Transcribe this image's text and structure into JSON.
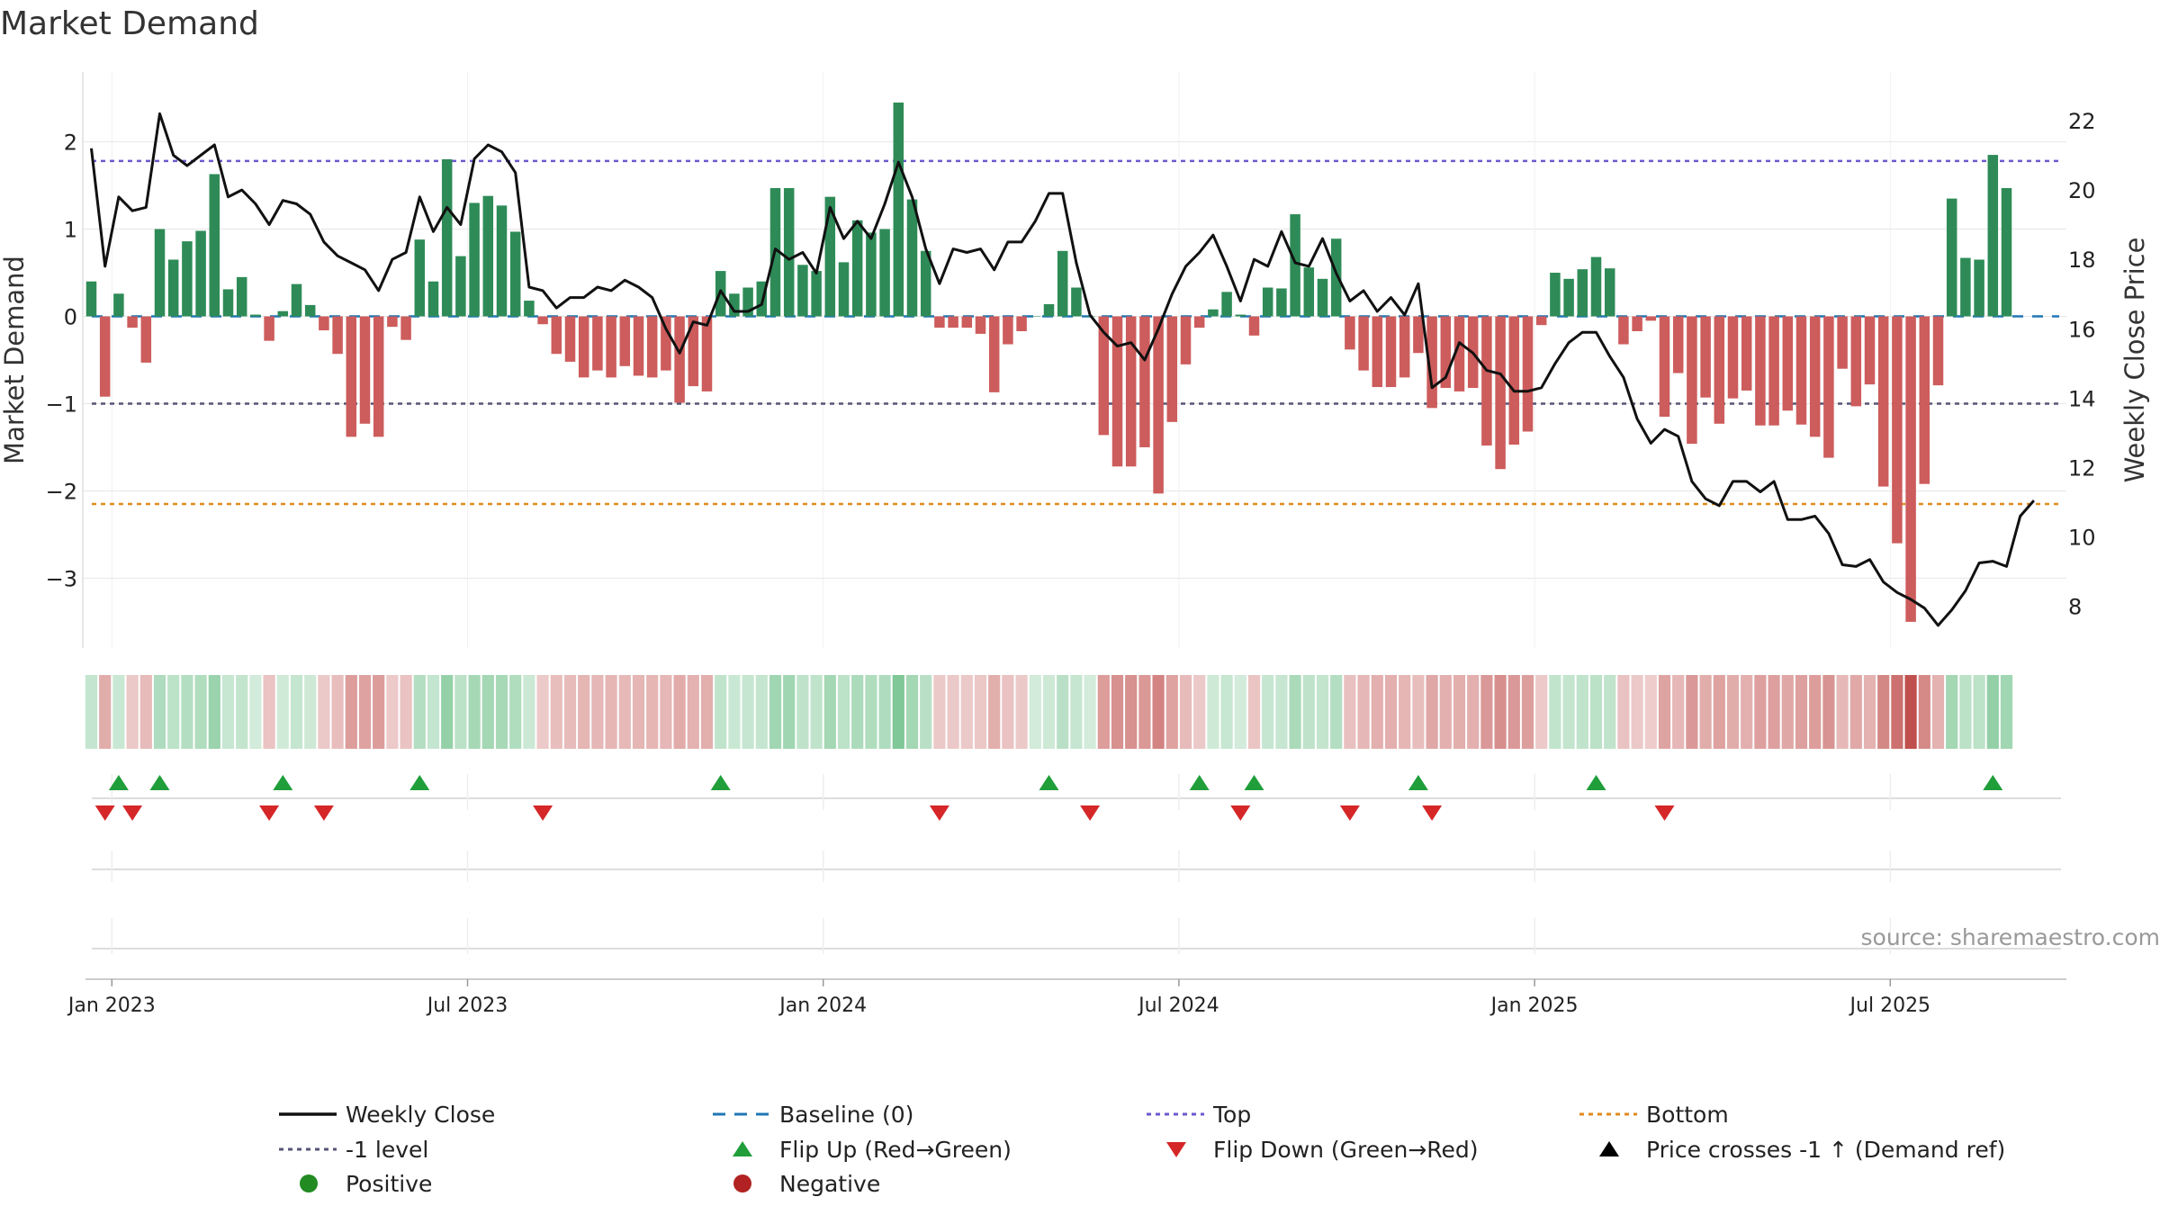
{
  "colors": {
    "positive_bar": "#2e8b57",
    "negative_bar": "#cd5c5c",
    "close_line": "#111111",
    "baseline": "#1f77b4",
    "top_line": "#6a5acd",
    "minus1_line": "#555577",
    "bottom_line": "#e08a1e",
    "flip_up": "#1f9e3a",
    "flip_down": "#d62728",
    "positive_dot": "#228b22",
    "negative_dot": "#b22222",
    "cross_marker": "#000000"
  },
  "chart_data": {
    "type": "bar",
    "title": "Market Demand",
    "ylabel_left": "Market Demand",
    "ylabel_right": "Weekly Close Price",
    "source": "source: sharemaestro.com",
    "ylim_left": [
      -3.8,
      2.8
    ],
    "ylim_right": [
      6.8,
      23.4
    ],
    "left_ticks": [
      {
        "value": 2,
        "label": "2"
      },
      {
        "value": 1,
        "label": "1"
      },
      {
        "value": 0,
        "label": "0"
      },
      {
        "value": -1,
        "label": "−1"
      },
      {
        "value": -2,
        "label": "−2"
      },
      {
        "value": -3,
        "label": "−3"
      }
    ],
    "right_ticks": [
      {
        "value": 22,
        "label": "22"
      },
      {
        "value": 20,
        "label": "20"
      },
      {
        "value": 18,
        "label": "18"
      },
      {
        "value": 16,
        "label": "16"
      },
      {
        "value": 14,
        "label": "14"
      },
      {
        "value": 12,
        "label": "12"
      },
      {
        "value": 10,
        "label": "10"
      },
      {
        "value": 8,
        "label": "8"
      }
    ],
    "x_ticks": [
      {
        "week": 1.5,
        "label": "Jan 2023"
      },
      {
        "week": 27.5,
        "label": "Jul 2023"
      },
      {
        "week": 53.5,
        "label": "Jan 2024"
      },
      {
        "week": 79.5,
        "label": "Jul 2024"
      },
      {
        "week": 105.5,
        "label": "Jan 2025"
      },
      {
        "week": 131.5,
        "label": "Jul 2025"
      }
    ],
    "reference_lines": {
      "top": 1.78,
      "minus1": -1.0,
      "bottom": -2.15,
      "baseline": 0
    },
    "demand": [
      0.4,
      -0.92,
      0.26,
      -0.13,
      -0.53,
      1.0,
      0.65,
      0.86,
      0.98,
      1.63,
      0.31,
      0.45,
      0.02,
      -0.28,
      0.06,
      0.37,
      0.13,
      -0.16,
      -0.43,
      -1.38,
      -1.23,
      -1.38,
      -0.12,
      -0.27,
      0.88,
      0.4,
      1.8,
      0.69,
      1.3,
      1.38,
      1.27,
      0.97,
      0.18,
      -0.09,
      -0.43,
      -0.52,
      -0.7,
      -0.62,
      -0.7,
      -0.57,
      -0.68,
      -0.7,
      -0.62,
      -0.99,
      -0.8,
      -0.86,
      0.52,
      0.26,
      0.33,
      0.4,
      1.47,
      1.47,
      0.59,
      0.52,
      1.37,
      0.62,
      1.1,
      0.96,
      1.0,
      2.45,
      1.34,
      0.75,
      -0.13,
      -0.13,
      -0.13,
      -0.2,
      -0.87,
      -0.32,
      -0.17,
      0.0,
      0.14,
      0.75,
      0.33,
      0.0,
      -1.36,
      -1.72,
      -1.72,
      -1.5,
      -2.03,
      -1.21,
      -0.55,
      -0.13,
      0.08,
      0.28,
      0.02,
      -0.22,
      0.33,
      0.32,
      1.17,
      0.56,
      0.43,
      0.89,
      -0.38,
      -0.62,
      -0.81,
      -0.81,
      -0.7,
      -0.42,
      -1.05,
      -0.82,
      -0.86,
      -0.82,
      -1.48,
      -1.75,
      -1.47,
      -1.32,
      -0.1,
      0.5,
      0.43,
      0.54,
      0.68,
      0.55,
      -0.32,
      -0.17,
      -0.05,
      -1.15,
      -0.65,
      -1.46,
      -0.93,
      -1.23,
      -0.94,
      -0.85,
      -1.25,
      -1.25,
      -1.08,
      -1.24,
      -1.38,
      -1.62,
      -0.6,
      -1.03,
      -0.78,
      -1.95,
      -2.6,
      -3.5,
      -1.92,
      -0.79,
      1.35,
      0.67,
      0.65,
      1.85,
      1.47
    ],
    "close": [
      21.2,
      17.8,
      19.8,
      19.4,
      19.5,
      22.2,
      21.0,
      20.7,
      21.0,
      21.3,
      19.8,
      20.0,
      19.6,
      19.0,
      19.7,
      19.6,
      19.3,
      18.5,
      18.1,
      17.9,
      17.7,
      17.1,
      18.0,
      18.2,
      19.8,
      18.8,
      19.5,
      19.0,
      20.9,
      21.3,
      21.1,
      20.5,
      17.2,
      17.1,
      16.6,
      16.9,
      16.9,
      17.2,
      17.1,
      17.4,
      17.2,
      16.9,
      16.0,
      15.3,
      16.2,
      16.1,
      17.1,
      16.5,
      16.5,
      16.7,
      18.3,
      18.0,
      18.2,
      17.6,
      19.5,
      18.6,
      19.1,
      18.6,
      19.6,
      20.8,
      19.8,
      18.3,
      17.3,
      18.3,
      18.2,
      18.3,
      17.7,
      18.5,
      18.5,
      19.1,
      19.9,
      19.9,
      17.9,
      16.4,
      15.9,
      15.5,
      15.6,
      15.1,
      16.0,
      17.0,
      17.8,
      18.2,
      18.7,
      17.8,
      16.8,
      18.0,
      17.8,
      18.8,
      17.9,
      17.8,
      18.6,
      17.6,
      16.8,
      17.1,
      16.5,
      16.9,
      16.4,
      17.3,
      14.3,
      14.6,
      15.6,
      15.3,
      14.8,
      14.7,
      14.2,
      14.2,
      14.3,
      15.0,
      15.6,
      15.9,
      15.9,
      15.2,
      14.6,
      13.4,
      12.7,
      13.1,
      12.9,
      11.6,
      11.1,
      10.9,
      11.6,
      11.6,
      11.3,
      11.6,
      10.5,
      10.5,
      10.6,
      10.1,
      9.2,
      9.15,
      9.35,
      8.7,
      8.4,
      8.2,
      7.95,
      7.45,
      7.9,
      8.45,
      9.25,
      9.3,
      9.15,
      10.6,
      11.05
    ],
    "flip_up_weeks": [
      2,
      5,
      14,
      24,
      46,
      70,
      81,
      85,
      97,
      110,
      139
    ],
    "flip_down_weeks": [
      1,
      3,
      13,
      17,
      33,
      62,
      73,
      84,
      92,
      98,
      115
    ]
  },
  "legend": {
    "items": [
      {
        "label": "Weekly Close",
        "symbol": "solid-line",
        "color": "#111111"
      },
      {
        "label": "Baseline (0)",
        "symbol": "dashed-line",
        "color": "#1f77b4"
      },
      {
        "label": "Top",
        "symbol": "dotted-line",
        "color": "#6a5acd"
      },
      {
        "label": "Bottom",
        "symbol": "dotted-line",
        "color": "#e08a1e"
      },
      {
        "label": "-1 level",
        "symbol": "dotted-line",
        "color": "#555577"
      },
      {
        "label": "Flip Up (Red→Green)",
        "symbol": "triangle-up",
        "color": "#1f9e3a"
      },
      {
        "label": "Flip Down (Green→Red)",
        "symbol": "triangle-down",
        "color": "#d62728"
      },
      {
        "label": "Price crosses -1 ↑ (Demand ref)",
        "symbol": "triangle-up",
        "color": "#000000"
      },
      {
        "label": "Positive",
        "symbol": "circle",
        "color": "#228b22"
      },
      {
        "label": "Negative",
        "symbol": "circle",
        "color": "#b22222"
      }
    ]
  }
}
